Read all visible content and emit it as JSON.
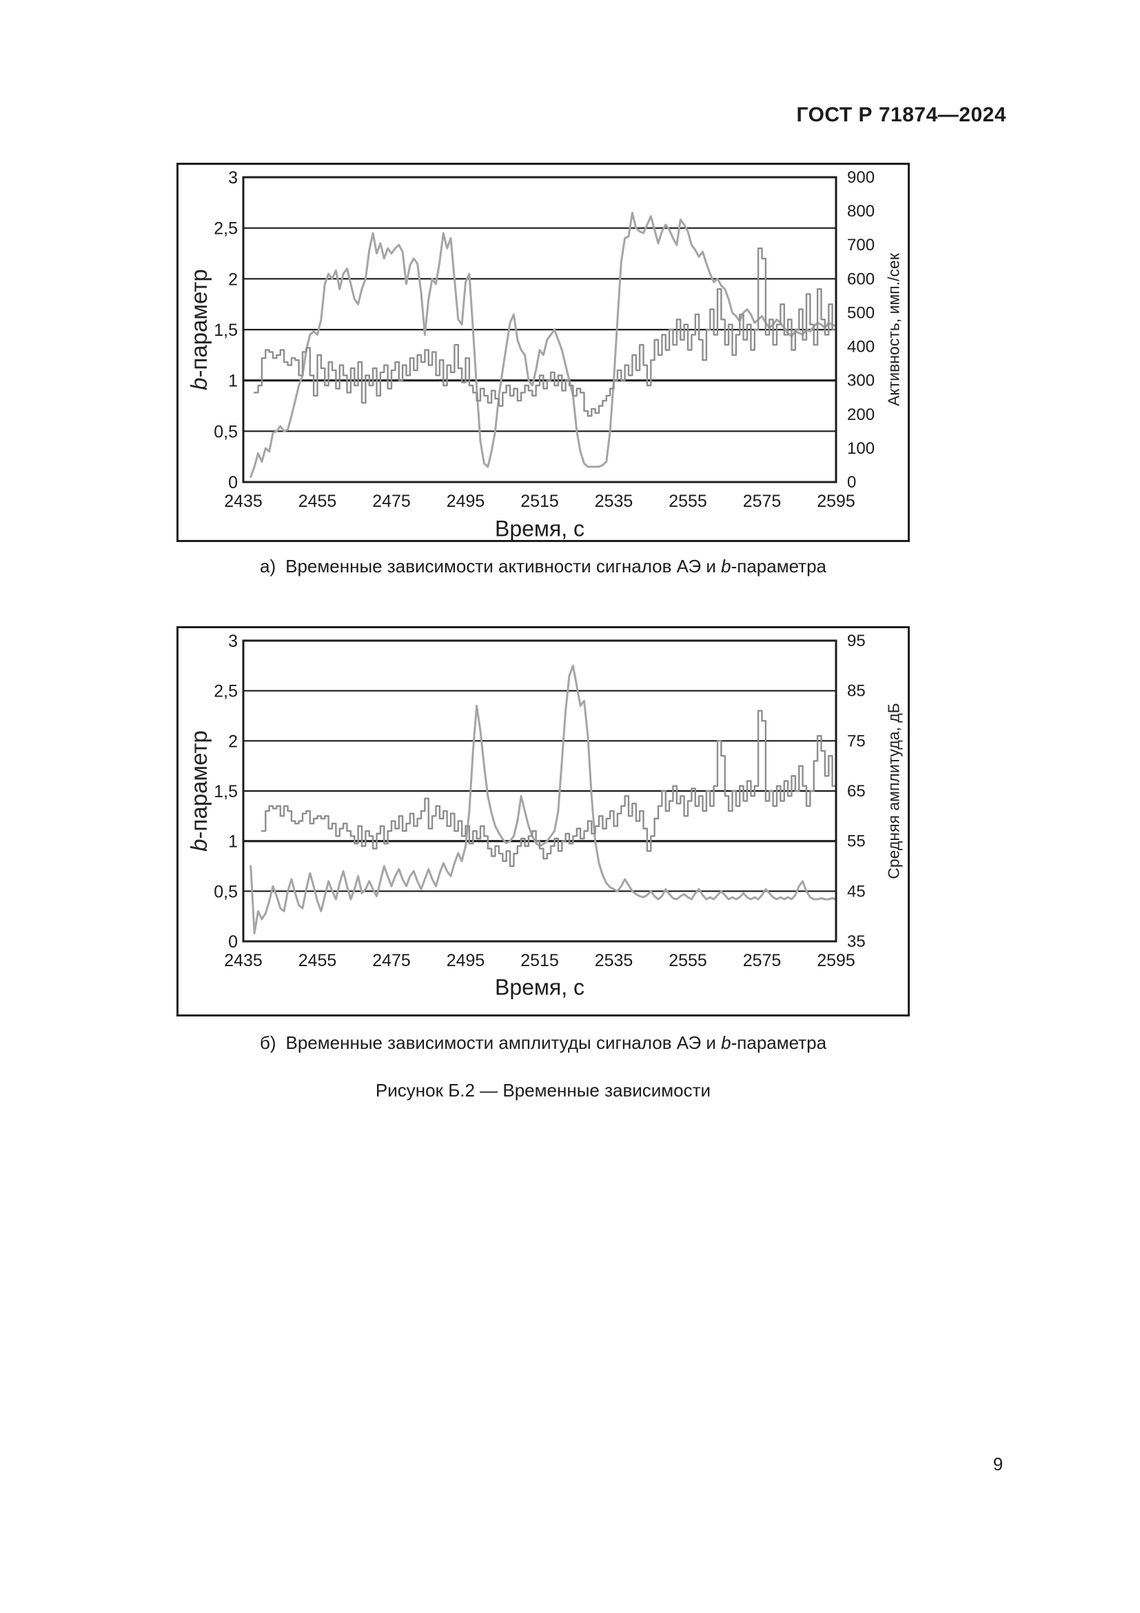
{
  "page": {
    "header": "ГОСТ Р 71874—2024",
    "page_number": "9",
    "figure_caption": "Рисунок Б.2 — Временные зависимости"
  },
  "captions": {
    "a": {
      "prefix": "а)",
      "before": "Временные зависимости активности сигналов АЭ и ",
      "italic": "b",
      "after": "-параметра"
    },
    "b": {
      "prefix": "б)",
      "before": "Временные зависимости амплитуды сигналов АЭ и ",
      "italic": "b",
      "after": "-параметра"
    }
  },
  "chart_data": [
    {
      "id": "chart-a",
      "type": "line",
      "title": "",
      "xlabel": "Время, с",
      "ylabel_left_italic": "b",
      "ylabel_left_rest": "-параметр",
      "ylabel_right": "Активность, имп./сек",
      "x_range": [
        2435,
        2595
      ],
      "x_ticks": [
        "2435",
        "2455",
        "2475",
        "2495",
        "2515",
        "2535",
        "2555",
        "2575",
        "2595"
      ],
      "x_tick_values": [
        2435,
        2455,
        2475,
        2495,
        2515,
        2535,
        2555,
        2575,
        2595
      ],
      "y_left_range": [
        0,
        3
      ],
      "y_left_ticks": [
        "3",
        "2,5",
        "2",
        "1,5",
        "1",
        "0,5",
        "0"
      ],
      "y_left_tick_values": [
        3,
        2.5,
        2,
        1.5,
        1,
        0.5,
        0
      ],
      "y_right_range": [
        0,
        900
      ],
      "y_right_ticks": [
        "900",
        "800",
        "700",
        "600",
        "500",
        "400",
        "300",
        "200",
        "100",
        "0"
      ],
      "y_right_tick_values": [
        900,
        800,
        700,
        600,
        500,
        400,
        300,
        200,
        100,
        0
      ],
      "gridlines_left": [
        0.5,
        1,
        1.5,
        2,
        2.5
      ],
      "grid": "horizontal",
      "legend": "none",
      "series": [
        {
          "name": "Активность АЭ",
          "axis": "right",
          "style": "smooth",
          "color": "#a5a5a5",
          "width": 3,
          "x_start": 2437,
          "x_step": 1,
          "values": [
            15,
            45,
            85,
            60,
            100,
            90,
            145,
            150,
            165,
            150,
            155,
            195,
            240,
            285,
            315,
            390,
            435,
            445,
            435,
            480,
            585,
            615,
            600,
            625,
            570,
            615,
            630,
            585,
            540,
            525,
            570,
            600,
            685,
            735,
            675,
            705,
            660,
            690,
            675,
            690,
            700,
            680,
            585,
            640,
            660,
            645,
            560,
            435,
            540,
            600,
            585,
            650,
            735,
            690,
            720,
            600,
            480,
            465,
            590,
            615,
            450,
            280,
            120,
            55,
            45,
            90,
            150,
            255,
            330,
            400,
            470,
            495,
            420,
            390,
            375,
            300,
            285,
            330,
            390,
            375,
            420,
            435,
            450,
            420,
            390,
            345,
            300,
            255,
            150,
            90,
            55,
            45,
            45,
            45,
            45,
            50,
            60,
            150,
            300,
            480,
            650,
            720,
            725,
            795,
            750,
            740,
            735,
            760,
            785,
            745,
            705,
            740,
            760,
            745,
            720,
            700,
            775,
            760,
            740,
            700,
            685,
            665,
            680,
            645,
            615,
            590,
            600,
            580,
            570,
            540,
            500,
            490,
            475,
            500,
            510,
            495,
            470,
            480,
            490,
            470,
            455,
            465,
            480,
            470,
            455,
            440,
            430,
            445,
            440,
            435,
            450,
            445,
            460,
            470,
            465,
            455,
            470,
            465,
            460
          ]
        },
        {
          "name": "b-параметр",
          "axis": "left",
          "style": "step",
          "color": "#8e8e8e",
          "width": 2.4,
          "x_start": 2438,
          "x_step": 1,
          "values": [
            0.88,
            0.95,
            1.22,
            1.3,
            1.28,
            1.22,
            1.25,
            1.3,
            1.18,
            1.15,
            1.22,
            1.2,
            1.05,
            1.28,
            1.32,
            1.05,
            0.85,
            1.25,
            1.12,
            0.95,
            1.18,
            1.1,
            0.92,
            1.15,
            1.05,
            0.88,
            1.12,
            0.95,
            1.18,
            0.78,
            1.05,
            0.95,
            1.12,
            0.85,
            1.08,
            1.15,
            0.92,
            1.1,
            1.18,
            1.0,
            1.15,
            1.05,
            1.22,
            1.1,
            1.25,
            1.18,
            1.3,
            1.15,
            1.28,
            1.05,
            1.2,
            0.95,
            1.15,
            1.08,
            1.35,
            1.12,
            0.98,
            1.22,
            0.95,
            0.88,
            0.8,
            0.92,
            0.85,
            0.78,
            0.9,
            0.82,
            0.75,
            0.88,
            0.95,
            0.85,
            0.92,
            0.8,
            0.88,
            0.95,
            0.9,
            0.85,
            0.95,
            1.05,
            0.92,
            1.0,
            1.08,
            0.95,
            1.05,
            0.9,
            1.0,
            0.95,
            0.85,
            0.92,
            0.88,
            0.7,
            0.65,
            0.72,
            0.68,
            0.75,
            0.8,
            0.85,
            0.92,
            1.0,
            1.1,
            1.0,
            1.15,
            1.05,
            1.25,
            1.1,
            1.35,
            1.15,
            0.95,
            1.2,
            1.4,
            1.25,
            1.45,
            1.3,
            1.5,
            1.35,
            1.6,
            1.4,
            1.55,
            1.3,
            1.45,
            1.65,
            1.4,
            1.2,
            1.5,
            1.7,
            1.45,
            1.9,
            1.6,
            1.35,
            1.55,
            1.25,
            1.45,
            1.65,
            1.4,
            1.55,
            1.3,
            1.5,
            2.3,
            2.2,
            1.45,
            1.6,
            1.35,
            1.55,
            1.75,
            1.45,
            1.6,
            1.3,
            1.5,
            1.7,
            1.4,
            1.85,
            1.55,
            1.35,
            1.9,
            1.6,
            1.45,
            1.75,
            1.5,
            1.65
          ]
        }
      ]
    },
    {
      "id": "chart-b",
      "type": "line",
      "title": "",
      "xlabel": "Время, с",
      "ylabel_left_italic": "b",
      "ylabel_left_rest": "-параметр",
      "ylabel_right": "Средняя амплитуда, дБ",
      "x_range": [
        2435,
        2595
      ],
      "x_ticks": [
        "2435",
        "2455",
        "2475",
        "2495",
        "2515",
        "2535",
        "2555",
        "2575",
        "2595"
      ],
      "x_tick_values": [
        2435,
        2455,
        2475,
        2495,
        2515,
        2535,
        2555,
        2575,
        2595
      ],
      "y_left_range": [
        0,
        3
      ],
      "y_left_ticks": [
        "3",
        "2,5",
        "2",
        "1,5",
        "1",
        "0,5",
        "0"
      ],
      "y_left_tick_values": [
        3,
        2.5,
        2,
        1.5,
        1,
        0.5,
        0
      ],
      "y_right_range": [
        35,
        95
      ],
      "y_right_ticks": [
        "95",
        "85",
        "75",
        "65",
        "55",
        "45",
        "35"
      ],
      "y_right_tick_values": [
        95,
        85,
        75,
        65,
        55,
        45,
        35
      ],
      "gridlines_left": [
        0.5,
        1,
        1.5,
        2,
        2.5
      ],
      "grid": "horizontal",
      "legend": "none",
      "series": [
        {
          "name": "b-параметр",
          "axis": "left",
          "style": "smooth",
          "color": "#a5a5a5",
          "width": 3,
          "x_start": 2437,
          "x_step": 1,
          "values": [
            0.75,
            0.08,
            0.3,
            0.22,
            0.28,
            0.4,
            0.55,
            0.45,
            0.33,
            0.3,
            0.5,
            0.62,
            0.48,
            0.36,
            0.33,
            0.52,
            0.68,
            0.55,
            0.4,
            0.3,
            0.45,
            0.6,
            0.5,
            0.42,
            0.58,
            0.7,
            0.55,
            0.42,
            0.52,
            0.65,
            0.48,
            0.52,
            0.6,
            0.52,
            0.45,
            0.6,
            0.75,
            0.65,
            0.55,
            0.65,
            0.72,
            0.62,
            0.55,
            0.65,
            0.7,
            0.6,
            0.52,
            0.62,
            0.72,
            0.62,
            0.55,
            0.68,
            0.78,
            0.7,
            0.65,
            0.78,
            0.88,
            0.8,
            0.95,
            1.3,
            1.9,
            2.35,
            2.1,
            1.75,
            1.45,
            1.28,
            1.15,
            1.08,
            1.02,
            0.98,
            1.0,
            1.05,
            1.2,
            1.45,
            1.3,
            1.15,
            1.05,
            0.98,
            0.95,
            0.97,
            1.0,
            1.05,
            1.1,
            1.3,
            1.8,
            2.3,
            2.65,
            2.75,
            2.55,
            2.35,
            2.4,
            2.05,
            1.45,
            1.0,
            0.78,
            0.66,
            0.58,
            0.54,
            0.52,
            0.5,
            0.55,
            0.62,
            0.56,
            0.5,
            0.47,
            0.45,
            0.44,
            0.46,
            0.5,
            0.45,
            0.42,
            0.45,
            0.52,
            0.47,
            0.43,
            0.42,
            0.45,
            0.47,
            0.44,
            0.42,
            0.48,
            0.52,
            0.46,
            0.42,
            0.44,
            0.42,
            0.46,
            0.5,
            0.46,
            0.42,
            0.44,
            0.42,
            0.44,
            0.48,
            0.44,
            0.42,
            0.44,
            0.42,
            0.46,
            0.52,
            0.48,
            0.44,
            0.42,
            0.44,
            0.42,
            0.44,
            0.42,
            0.46,
            0.55,
            0.6,
            0.5,
            0.44,
            0.42,
            0.42,
            0.43,
            0.42,
            0.42,
            0.43,
            0.42
          ]
        },
        {
          "name": "Средняя амплитуда",
          "axis": "right",
          "style": "step",
          "color": "#8e8e8e",
          "width": 2.4,
          "x_start": 2440,
          "x_step": 1,
          "values": [
            57,
            61,
            62,
            61.5,
            62,
            60,
            62,
            61,
            59,
            58.5,
            59,
            60.5,
            61,
            58.5,
            59.5,
            60,
            59.5,
            60,
            57.5,
            58.5,
            56,
            57.5,
            58.5,
            57,
            56,
            54.5,
            58,
            54,
            57,
            56,
            53.5,
            56.5,
            58,
            54.5,
            57,
            59,
            57.5,
            60,
            57,
            58.5,
            60.5,
            58,
            59.5,
            61,
            63.5,
            57.5,
            60,
            62,
            59.5,
            61,
            58,
            60.5,
            57,
            59,
            56,
            58,
            54.5,
            57,
            55.5,
            58,
            56,
            53.5,
            52,
            54,
            52.5,
            51,
            53,
            50,
            52.5,
            54,
            55.5,
            54,
            56,
            57,
            55,
            53.5,
            51.5,
            52.5,
            54,
            55.5,
            53,
            55,
            56.5,
            54.5,
            56,
            57.5,
            55.5,
            57,
            59,
            56.5,
            58,
            60,
            57.5,
            59.5,
            61,
            58,
            60.5,
            62,
            64,
            60,
            62.5,
            59,
            61,
            57.5,
            53,
            56,
            59.5,
            62,
            65,
            61,
            63,
            66,
            62.5,
            64,
            60,
            63,
            65.5,
            62,
            64,
            61,
            65,
            62,
            66,
            75,
            72,
            64,
            61,
            65,
            62,
            66,
            63,
            67,
            64,
            66,
            81,
            79,
            63,
            65,
            62,
            66,
            63,
            67,
            64,
            68,
            65,
            70,
            66,
            62,
            65,
            71,
            76,
            73,
            68,
            72,
            66,
            70
          ]
        }
      ]
    }
  ]
}
